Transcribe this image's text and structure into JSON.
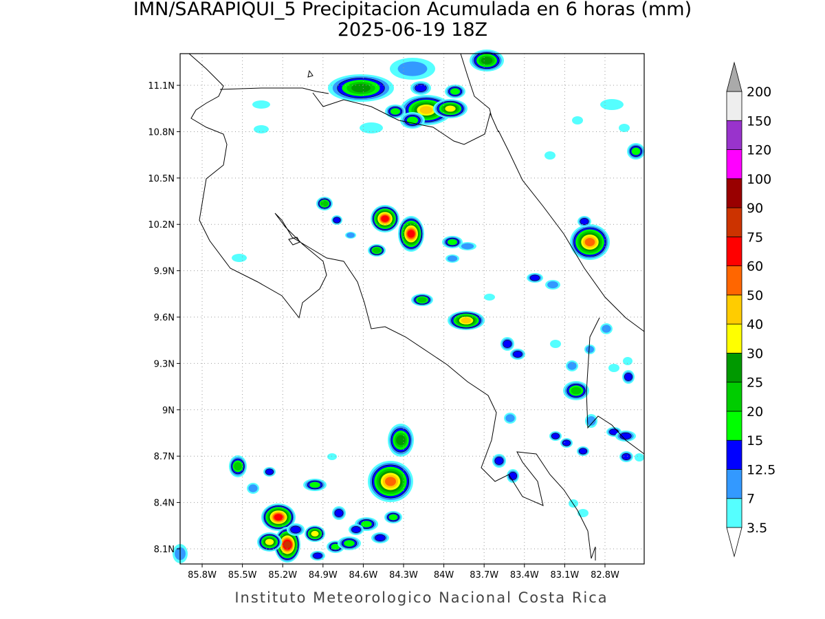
{
  "map": {
    "title": "IMN/SARAPIQUI_5 Precipitacion Acumulada en 6 horas (mm)",
    "subtitle": "2025-06-19 18Z",
    "xlim": [
      -85.964,
      -82.508
    ],
    "ylim": [
      8.002,
      11.305
    ],
    "xticks": [
      {
        "value": -85.8,
        "label": "85.8W"
      },
      {
        "value": -85.5,
        "label": "85.5W"
      },
      {
        "value": -85.2,
        "label": "85.2W"
      },
      {
        "value": -84.9,
        "label": "84.9W"
      },
      {
        "value": -84.6,
        "label": "84.6W"
      },
      {
        "value": -84.3,
        "label": "84.3W"
      },
      {
        "value": -84.0,
        "label": "84W"
      },
      {
        "value": -83.7,
        "label": "83.7W"
      },
      {
        "value": -83.4,
        "label": "83.4W"
      },
      {
        "value": -83.1,
        "label": "83.1W"
      },
      {
        "value": -82.8,
        "label": "82.8W"
      }
    ],
    "yticks": [
      {
        "value": 8.1,
        "label": "8.1N"
      },
      {
        "value": 8.4,
        "label": "8.4N"
      },
      {
        "value": 8.7,
        "label": "8.7N"
      },
      {
        "value": 9.0,
        "label": "9N"
      },
      {
        "value": 9.3,
        "label": "9.3N"
      },
      {
        "value": 9.6,
        "label": "9.6N"
      },
      {
        "value": 9.9,
        "label": "9.9N"
      },
      {
        "value": 10.2,
        "label": "10.2N"
      },
      {
        "value": 10.5,
        "label": "10.5N"
      },
      {
        "value": 10.8,
        "label": "10.8N"
      },
      {
        "value": 11.1,
        "label": "11.1N"
      }
    ],
    "grid": true,
    "colorbar": {
      "levels": [
        3.5,
        7,
        12.5,
        15,
        20,
        25,
        30,
        40,
        50,
        60,
        75,
        90,
        100,
        120,
        150,
        200
      ],
      "colors": [
        "#55ffff",
        "#3399ff",
        "#0000ff",
        "#00ff00",
        "#00cc00",
        "#009900",
        "#ffff00",
        "#ffcc00",
        "#ff6600",
        "#ff0000",
        "#cc3300",
        "#990000",
        "#ff00ff",
        "#9933cc",
        "#eeeeee"
      ],
      "under_color": "#ffffff",
      "over_color": "#aaaaaa"
    },
    "footer": "Instituto Meteorologico Nacional Costa Rica"
  }
}
